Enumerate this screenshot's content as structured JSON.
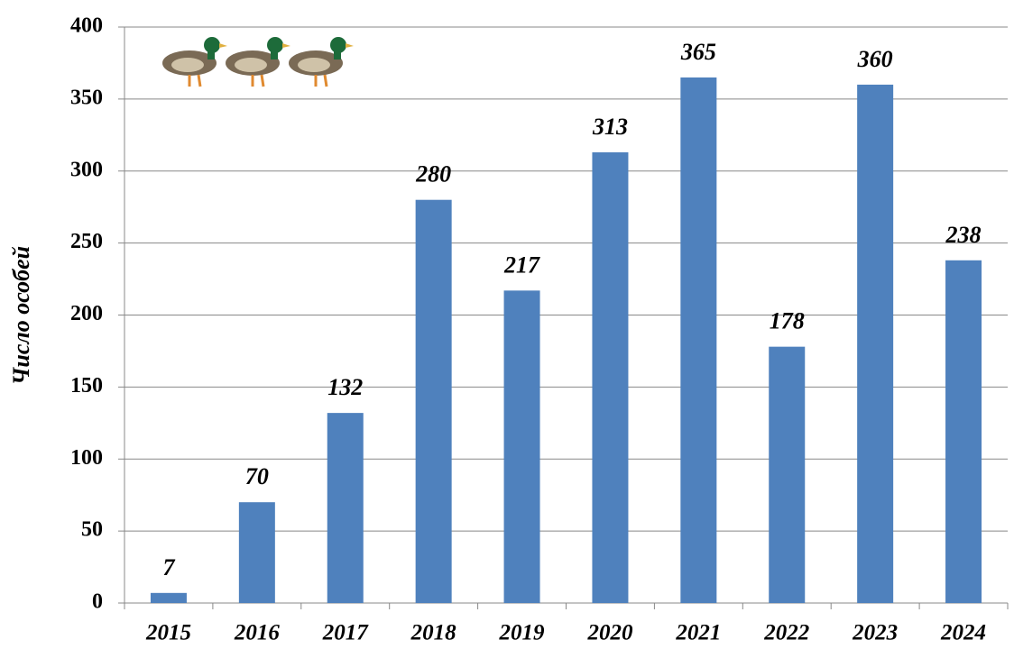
{
  "chart_data": {
    "type": "bar",
    "y_label": "Число особей",
    "categories": [
      "2015",
      "2016",
      "2017",
      "2018",
      "2019",
      "2020",
      "2021",
      "2022",
      "2023",
      "2024"
    ],
    "values": [
      7,
      70,
      132,
      280,
      217,
      313,
      365,
      178,
      360,
      238
    ],
    "color": "#4f81bd",
    "ylim": [
      0,
      400
    ],
    "yticks": [
      0,
      50,
      100,
      150,
      200,
      250,
      300,
      350,
      400
    ],
    "grid": true
  }
}
